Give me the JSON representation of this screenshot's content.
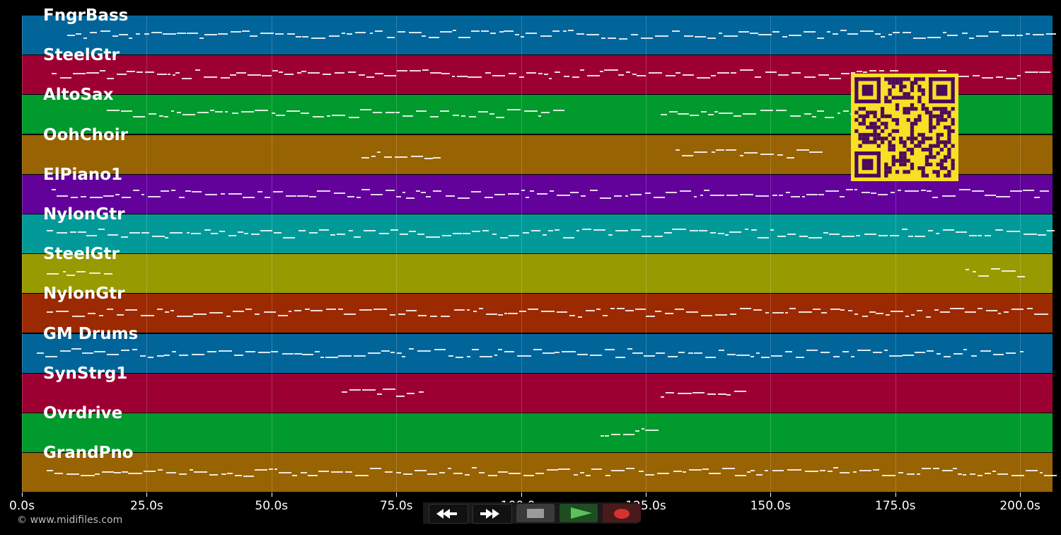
{
  "tracks": [
    {
      "name": "FngrBass",
      "color": "#01659a"
    },
    {
      "name": "SteelGtr",
      "color": "#9c0033"
    },
    {
      "name": "AltoSax",
      "color": "#019a2c"
    },
    {
      "name": "OohChoir",
      "color": "#986302"
    },
    {
      "name": "ElPiano1",
      "color": "#62029b"
    },
    {
      "name": "NylonGtr",
      "color": "#029a98"
    },
    {
      "name": "SteelGtr",
      "color": "#989a02"
    },
    {
      "name": "NylonGtr",
      "color": "#9b2a02"
    },
    {
      "name": "GM Drums",
      "color": "#01659a"
    },
    {
      "name": "SynStrg1",
      "color": "#9c0033"
    },
    {
      "name": "Ovrdrive",
      "color": "#019a2c"
    },
    {
      "name": "GrandPno",
      "color": "#986302"
    }
  ],
  "timeline": {
    "ticks": [
      "0.0s",
      "25.0s",
      "50.0s",
      "75.0s",
      "100.0s",
      "125.0s",
      "150.0s",
      "175.0s",
      "200.0s"
    ],
    "tick_seconds": [
      0,
      25,
      50,
      75,
      100,
      125,
      150,
      175,
      200
    ],
    "max_seconds": 206.5
  },
  "credit": "© www.midifiles.com",
  "qr": {
    "fg": "#4b0a5a",
    "bg": "#f7e025"
  },
  "transport": {
    "rewind_icon": "rewind-icon",
    "fast_forward_icon": "fast-forward-icon",
    "stop_icon": "stop-icon",
    "play_icon": "play-icon",
    "record_icon": "record-icon"
  }
}
